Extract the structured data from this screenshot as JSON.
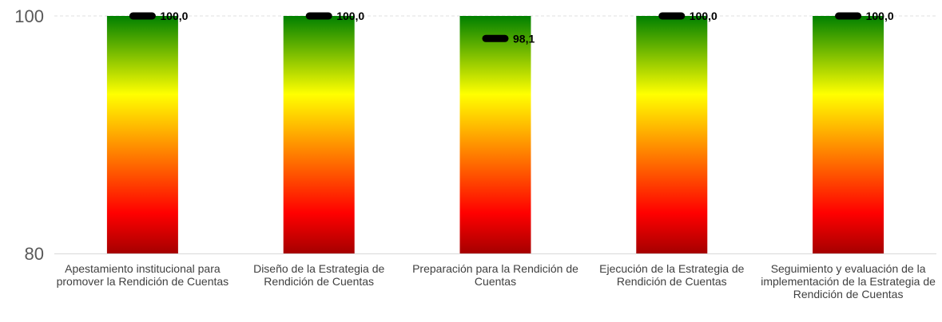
{
  "chart_data": {
    "type": "bar",
    "categories": [
      "Apestamiento institucional para promover la Rendición de Cuentas",
      "Diseño de la Estrategia de Rendición de Cuentas",
      "Preparación para la Rendición de Cuentas",
      "Ejecución de la Estrategia de Rendición de Cuentas",
      "Seguimiento y evaluación de la implementación de la Estrategia de Rendición de Cuentas"
    ],
    "series": [
      {
        "values": [
          100,
          100,
          100,
          100,
          100
        ]
      },
      {
        "values": [
          100.0,
          100.0,
          98.1,
          100.0,
          100.0
        ]
      }
    ],
    "data_labels": [
      "100,0",
      "100,0",
      "98,1",
      "100,0",
      "100,0"
    ],
    "yticks": [
      "100",
      "80"
    ],
    "ylim": [
      80,
      100
    ],
    "gradient_colors": [
      "#008000",
      "#ffff00",
      "#ff0000",
      "#a50000"
    ],
    "marker_color": "#000000",
    "grid": true
  }
}
